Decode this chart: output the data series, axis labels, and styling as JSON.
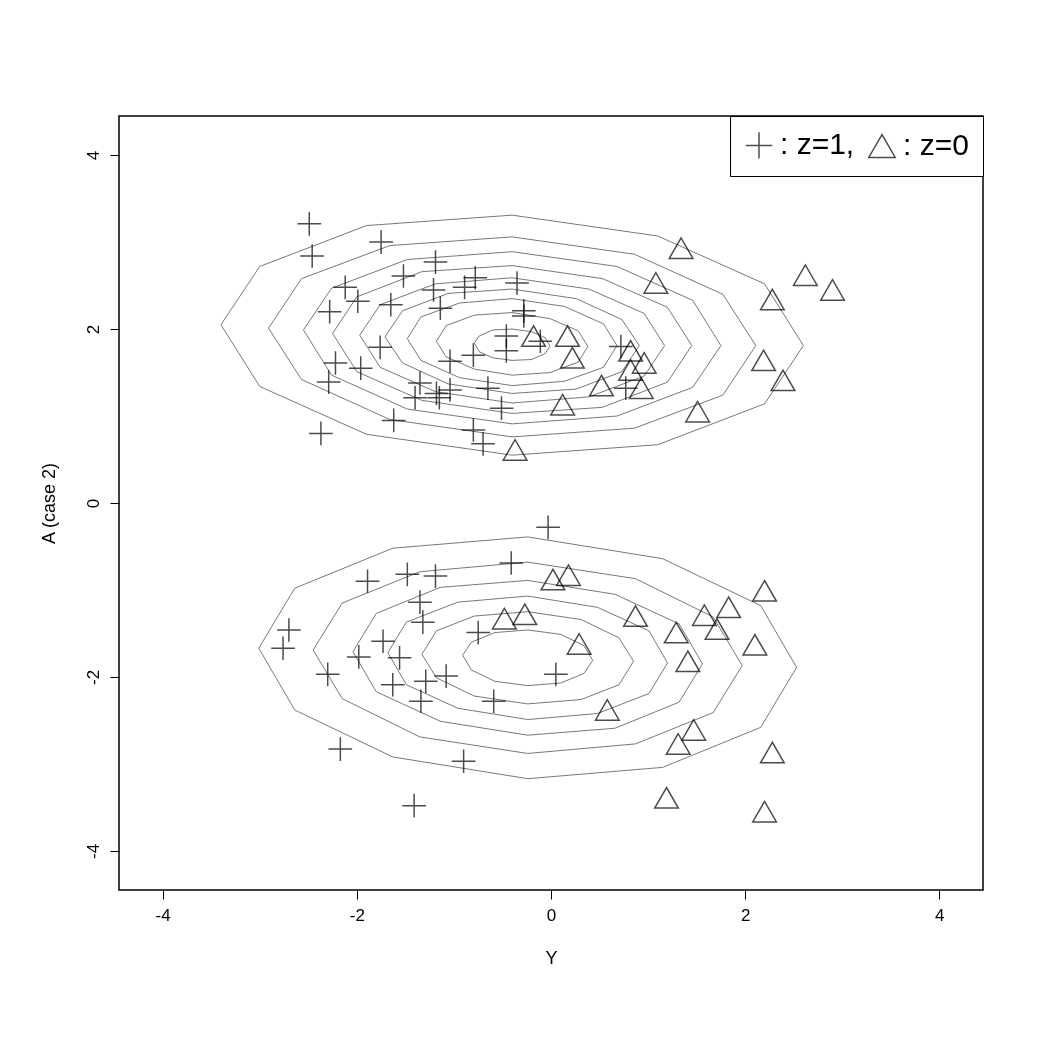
{
  "chart_data": {
    "type": "scatter",
    "xlabel": "Y",
    "ylabel": "A (case 2)",
    "xlim": [
      -4.45,
      4.45
    ],
    "ylim": [
      -4.45,
      4.45
    ],
    "xticks": [
      -4,
      -2,
      0,
      2,
      4
    ],
    "yticks": [
      -4,
      -2,
      0,
      2,
      4
    ],
    "grid": false,
    "legend": "top right",
    "series": [
      {
        "type": "line",
        "color": "#555555",
        "x": [
          2.6,
          2.2,
          1.1,
          -0.4,
          -1.9,
          -3.0,
          -3.4
        ],
        "values": [
          1.81,
          2.52,
          3.07,
          3.31,
          3.19,
          2.72,
          2.05
        ]
      },
      {
        "type": "line",
        "color": "#555555",
        "x": [
          -3.4,
          -3.0,
          -1.9,
          -0.4,
          1.1,
          2.2,
          2.6
        ],
        "values": [
          2.05,
          1.34,
          0.79,
          0.55,
          0.67,
          1.14,
          1.81
        ]
      },
      {
        "type": "line",
        "color": "#555555",
        "x": [
          2.11,
          1.77,
          0.86,
          -0.4,
          -1.66,
          -2.57,
          -2.91
        ],
        "values": [
          1.81,
          2.4,
          2.86,
          3.06,
          2.96,
          2.58,
          2.01
        ]
      },
      {
        "type": "line",
        "color": "#555555",
        "x": [
          -2.91,
          -2.57,
          -1.66,
          -0.4,
          0.86,
          1.77,
          2.11
        ],
        "values": [
          2.01,
          1.42,
          0.96,
          0.76,
          0.86,
          1.24,
          1.81
        ]
      },
      {
        "type": "line",
        "color": "#555555",
        "x": [
          1.75,
          1.46,
          0.68,
          -0.4,
          -1.48,
          -2.26,
          -2.55
        ],
        "values": [
          1.81,
          2.33,
          2.72,
          2.89,
          2.8,
          2.47,
          1.99
        ]
      },
      {
        "type": "line",
        "color": "#555555",
        "x": [
          -2.55,
          -2.26,
          -1.48,
          -0.4,
          0.68,
          1.46,
          1.75
        ],
        "values": [
          1.99,
          1.47,
          1.08,
          0.91,
          1.0,
          1.33,
          1.81
        ]
      },
      {
        "type": "line",
        "color": "#555555",
        "x": [
          1.45,
          1.2,
          0.53,
          -0.4,
          -1.33,
          -2.0,
          -2.25
        ],
        "values": [
          1.81,
          2.25,
          2.58,
          2.73,
          2.66,
          2.37,
          1.95
        ]
      },
      {
        "type": "line",
        "color": "#555555",
        "x": [
          -2.25,
          -2.0,
          -1.33,
          -0.4,
          0.53,
          1.2,
          1.45
        ],
        "values": [
          1.95,
          1.51,
          1.18,
          1.03,
          1.1,
          1.39,
          1.81
        ]
      },
      {
        "type": "line",
        "color": "#555555",
        "x": [
          1.17,
          0.96,
          0.39,
          -0.4,
          -1.19,
          -1.76,
          -1.97
        ],
        "values": [
          1.81,
          2.18,
          2.46,
          2.59,
          2.52,
          2.28,
          1.93
        ]
      },
      {
        "type": "line",
        "color": "#555555",
        "x": [
          -1.97,
          -1.76,
          -1.19,
          -0.4,
          0.39,
          0.96,
          1.17
        ],
        "values": [
          1.93,
          1.56,
          1.28,
          1.15,
          1.22,
          1.46,
          1.81
        ]
      },
      {
        "type": "line",
        "color": "#555555",
        "x": [
          0.91,
          0.73,
          0.26,
          -0.4,
          -1.06,
          -1.53,
          -1.71
        ],
        "values": [
          1.81,
          2.11,
          2.35,
          2.46,
          2.41,
          2.21,
          1.91
        ]
      },
      {
        "type": "line",
        "color": "#555555",
        "x": [
          -1.71,
          -1.53,
          -1.06,
          -0.4,
          0.26,
          0.73,
          0.91
        ],
        "values": [
          1.91,
          1.61,
          1.37,
          1.26,
          1.31,
          1.51,
          1.81
        ]
      },
      {
        "type": "line",
        "color": "#555555",
        "x": [
          0.68,
          0.54,
          0.14,
          -0.4,
          -0.94,
          -1.34,
          -1.48
        ],
        "values": [
          1.81,
          2.06,
          2.26,
          2.35,
          2.3,
          2.14,
          1.89
        ]
      },
      {
        "type": "line",
        "color": "#555555",
        "x": [
          -1.48,
          -1.34,
          -0.94,
          -0.4,
          0.14,
          0.54,
          0.68
        ],
        "values": [
          1.89,
          1.64,
          1.44,
          1.35,
          1.4,
          1.56,
          1.81
        ]
      },
      {
        "type": "line",
        "color": "#555555",
        "x": [
          0.38,
          0.28,
          -0.01,
          -0.4,
          -0.79,
          -1.08,
          -1.18
        ],
        "values": [
          1.8,
          1.98,
          2.12,
          2.19,
          2.16,
          2.04,
          1.86
        ]
      },
      {
        "type": "line",
        "color": "#555555",
        "x": [
          -1.18,
          -1.08,
          -0.79,
          -0.4,
          -0.01,
          0.28,
          0.38
        ],
        "values": [
          1.86,
          1.68,
          1.54,
          1.47,
          1.5,
          1.62,
          1.8
        ]
      },
      {
        "type": "line",
        "color": "#555555",
        "x": [
          -0.01,
          -0.06,
          -0.2,
          -0.4,
          -0.6,
          -0.74,
          -0.79
        ],
        "values": [
          1.8,
          1.9,
          1.97,
          2.0,
          1.99,
          1.92,
          1.84
        ]
      },
      {
        "type": "line",
        "color": "#555555",
        "x": [
          -0.79,
          -0.74,
          -0.6,
          -0.4,
          -0.2,
          -0.06,
          -0.01
        ],
        "values": [
          1.84,
          1.74,
          1.67,
          1.64,
          1.65,
          1.72,
          1.8
        ]
      },
      {
        "type": "line",
        "color": "#555555",
        "x": [
          2.53,
          2.16,
          1.15,
          -0.24,
          -1.63,
          -2.64,
          -3.01
        ],
        "values": [
          -1.89,
          -1.18,
          -0.64,
          -0.39,
          -0.52,
          -0.98,
          -1.67
        ]
      },
      {
        "type": "line",
        "color": "#555555",
        "x": [
          -3.01,
          -2.64,
          -1.63,
          -0.24,
          1.15,
          2.16,
          2.53
        ],
        "values": [
          -1.67,
          -2.38,
          -2.92,
          -3.17,
          -3.04,
          -2.58,
          -1.89
        ]
      },
      {
        "type": "line",
        "color": "#555555",
        "x": [
          1.97,
          1.67,
          0.87,
          -0.24,
          -1.35,
          -2.15,
          -2.45
        ],
        "values": [
          -1.87,
          -1.31,
          -0.87,
          -0.68,
          -0.79,
          -1.15,
          -1.69
        ]
      },
      {
        "type": "line",
        "color": "#555555",
        "x": [
          -2.45,
          -2.15,
          -1.35,
          -0.24,
          0.87,
          1.67,
          1.97
        ],
        "values": [
          -1.69,
          -2.25,
          -2.69,
          -2.88,
          -2.77,
          -2.41,
          -1.87
        ]
      },
      {
        "type": "line",
        "color": "#555555",
        "x": [
          1.56,
          1.32,
          0.66,
          -0.24,
          -1.14,
          -1.8,
          -2.04
        ],
        "values": [
          -1.85,
          -1.39,
          -1.05,
          -0.89,
          -0.97,
          -1.27,
          -1.71
        ]
      },
      {
        "type": "line",
        "color": "#555555",
        "x": [
          -2.04,
          -1.8,
          -1.14,
          -0.24,
          0.66,
          1.32,
          1.56
        ],
        "values": [
          -1.71,
          -2.17,
          -2.51,
          -2.67,
          -2.59,
          -2.29,
          -1.85
        ]
      },
      {
        "type": "line",
        "color": "#555555",
        "x": [
          1.2,
          1.01,
          0.48,
          -0.24,
          -0.96,
          -1.49,
          -1.68
        ],
        "values": [
          -1.84,
          -1.47,
          -1.2,
          -1.07,
          -1.14,
          -1.37,
          -1.72
        ]
      },
      {
        "type": "line",
        "color": "#555555",
        "x": [
          -1.68,
          -1.49,
          -0.96,
          -0.24,
          0.48,
          1.01,
          1.2
        ],
        "values": [
          -1.72,
          -2.09,
          -2.36,
          -2.49,
          -2.42,
          -2.19,
          -1.84
        ]
      },
      {
        "type": "line",
        "color": "#555555",
        "x": [
          0.85,
          0.7,
          0.31,
          -0.24,
          -0.79,
          -1.18,
          -1.33
        ],
        "values": [
          -1.82,
          -1.55,
          -1.34,
          -1.25,
          -1.3,
          -1.47,
          -1.74
        ]
      },
      {
        "type": "line",
        "color": "#555555",
        "x": [
          -1.33,
          -1.18,
          -0.79,
          -0.24,
          0.31,
          0.7,
          0.85
        ],
        "values": [
          -1.74,
          -2.01,
          -2.22,
          -2.31,
          -2.26,
          -2.09,
          -1.82
        ]
      },
      {
        "type": "line",
        "color": "#555555",
        "x": [
          0.43,
          0.34,
          0.1,
          -0.24,
          -0.58,
          -0.82,
          -0.91
        ],
        "values": [
          -1.81,
          -1.64,
          -1.51,
          -1.46,
          -1.49,
          -1.6,
          -1.75
        ]
      },
      {
        "type": "line",
        "color": "#555555",
        "x": [
          -0.91,
          -0.82,
          -0.58,
          -0.24,
          0.1,
          0.34,
          0.43
        ],
        "values": [
          -1.75,
          -1.92,
          -2.05,
          -2.1,
          -2.07,
          -1.96,
          -1.81
        ]
      },
      {
        "name": ": z=1,",
        "marker": "cross",
        "color": "#000000",
        "x": [
          -2.49,
          -2.46,
          -1.75,
          -1.19,
          -1.52,
          -2.12,
          -1.21,
          -0.89,
          -0.78,
          -0.35,
          -1.99,
          -2.28,
          -1.65,
          -1.14,
          -0.28,
          -0.28,
          -0.46,
          -0.46,
          -0.11,
          -1.76,
          -2.22,
          -1.96,
          -2.29,
          -0.8,
          -1.04,
          -1.35,
          -0.65,
          -1.4,
          -1.04,
          -1.15,
          -1.18,
          -0.51,
          -1.62,
          -2.37,
          -0.8,
          -0.7,
          0.72,
          0.77,
          -0.03,
          -0.41,
          -1.89,
          -1.48,
          -1.19,
          -1.35,
          -1.32,
          -2.7,
          -2.76,
          -1.73,
          -1.56,
          -1.98,
          -0.75,
          -2.3,
          -1.63,
          -1.29,
          -1.08,
          -1.34,
          -0.59,
          0.05,
          -2.17,
          -0.9,
          -1.41
        ],
        "values": [
          3.21,
          2.84,
          3.0,
          2.77,
          2.61,
          2.48,
          2.45,
          2.48,
          2.59,
          2.53,
          2.32,
          2.2,
          2.28,
          2.24,
          2.15,
          2.21,
          1.92,
          1.75,
          1.86,
          1.79,
          1.61,
          1.55,
          1.39,
          1.7,
          1.63,
          1.38,
          1.32,
          1.21,
          1.3,
          1.21,
          1.26,
          1.09,
          0.95,
          0.8,
          0.84,
          0.68,
          1.8,
          1.32,
          -0.28,
          -0.69,
          -0.9,
          -0.82,
          -0.84,
          -1.14,
          -1.37,
          -1.46,
          -1.67,
          -1.59,
          -1.78,
          -1.77,
          -1.49,
          -1.97,
          -2.09,
          -2.05,
          -1.99,
          -2.28,
          -2.28,
          -1.97,
          -2.83,
          -2.97,
          -3.48
        ]
      },
      {
        "name": ": z=0",
        "marker": "triangle",
        "color": "#000000",
        "x": [
          1.34,
          1.08,
          2.62,
          2.9,
          2.28,
          -0.18,
          0.17,
          0.22,
          0.82,
          0.96,
          0.82,
          0.93,
          0.52,
          0.12,
          2.19,
          2.39,
          1.51,
          -0.37,
          0.02,
          0.18,
          -0.48,
          -0.27,
          0.29,
          0.87,
          1.29,
          1.58,
          1.83,
          1.71,
          1.41,
          2.2,
          2.1,
          0.58,
          1.47,
          1.31,
          2.28,
          1.19,
          2.2
        ],
        "values": [
          2.93,
          2.53,
          2.62,
          2.45,
          2.34,
          1.92,
          1.92,
          1.67,
          1.75,
          1.61,
          1.53,
          1.32,
          1.35,
          1.13,
          1.64,
          1.41,
          1.05,
          0.61,
          -0.88,
          -0.83,
          -1.33,
          -1.28,
          -1.62,
          -1.3,
          -1.49,
          -1.29,
          -1.2,
          -1.45,
          -1.82,
          -1.01,
          -1.63,
          -2.38,
          -2.61,
          -2.77,
          -2.87,
          -3.39,
          -3.55
        ]
      }
    ]
  }
}
